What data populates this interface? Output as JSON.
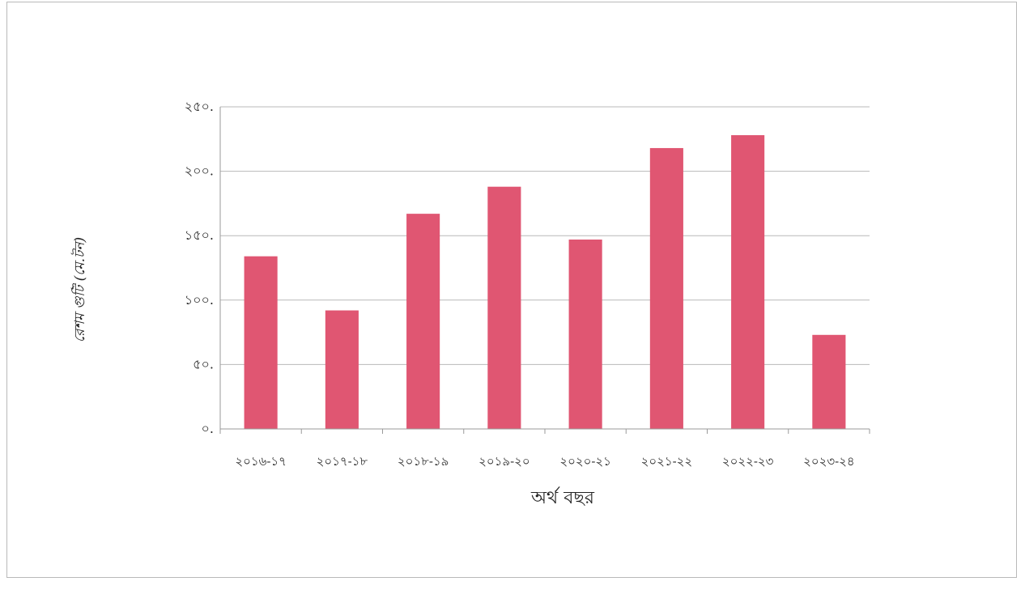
{
  "chart_data": {
    "type": "bar",
    "categories": [
      "২০১৬-১৭",
      "২০১৭-১৮",
      "২০১৮-১৯",
      "২০১৯-২০",
      "২০২০-২১",
      "২০২১-২২",
      "২০২২-২৩",
      "২০২৩-২৪"
    ],
    "series": [
      {
        "values": [
          134,
          92,
          167,
          188,
          147,
          218,
          228,
          73
        ]
      }
    ],
    "title": "",
    "xlabel": "অর্থ বছর",
    "ylabel": "রেশম গুটি (মে.টন)",
    "ylim": [
      0,
      250
    ],
    "y_ticks": [
      0,
      50,
      100,
      150,
      200,
      250
    ],
    "y_tick_labels": [
      "০.",
      "৫০.",
      "১০০.",
      "১৫০.",
      "২০০.",
      "২৫০."
    ],
    "grid": true,
    "legend": "none",
    "colors": {
      "bar": "#e05672",
      "gridline": "#b8b8b8",
      "axis": "#9a9a9a"
    }
  }
}
